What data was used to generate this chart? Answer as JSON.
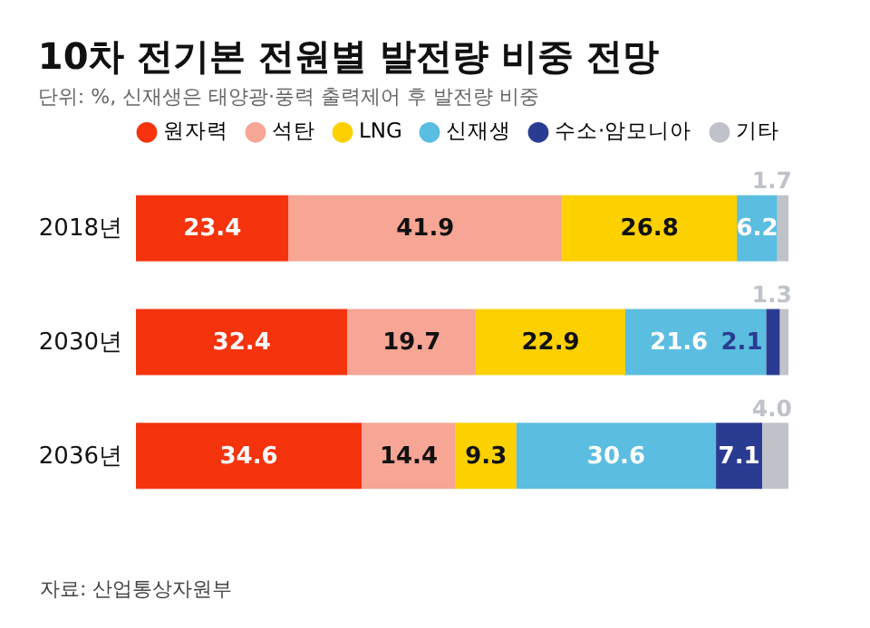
{
  "chart_data": {
    "type": "bar",
    "orientation": "horizontal",
    "stacked": true,
    "legend": "top",
    "title": "10차 전기본 전원별 발전량 비중 전망",
    "subtitle": "단위: %, 신재생은 태양광·풍력 출력제어 후 발전량 비중",
    "annotations": [
      "자료: 산업통상자원부"
    ],
    "categories": [
      "2018년",
      "2030년",
      "2036년"
    ],
    "series": [
      {
        "name": "원자력",
        "color": "#f5330d",
        "values": [
          23.4,
          32.4,
          34.6
        ],
        "value_labels": [
          "23.4",
          "32.4",
          "34.6"
        ]
      },
      {
        "name": "석탄",
        "color": "#f7a594",
        "values": [
          41.9,
          19.7,
          14.4
        ],
        "value_labels": [
          "41.9",
          "19.7",
          "14.4"
        ]
      },
      {
        "name": "LNG",
        "color": "#fdd000",
        "values": [
          26.8,
          22.9,
          9.3
        ],
        "value_labels": [
          "26.8",
          "22.9",
          "9.3"
        ]
      },
      {
        "name": "신재생",
        "color": "#5bbde0",
        "values": [
          6.2,
          21.6,
          30.6
        ],
        "value_labels": [
          "6.2",
          "21.6",
          "30.6"
        ]
      },
      {
        "name": "수소·암모니아",
        "color": "#2a3c92",
        "values": [
          null,
          2.1,
          7.1
        ],
        "value_labels": [
          null,
          "2.1",
          "7.1"
        ]
      },
      {
        "name": "기타",
        "color": "#bfc3c9",
        "values": [
          1.7,
          1.3,
          4.0
        ],
        "value_labels": [
          "1.7",
          "1.3",
          "4.0"
        ]
      }
    ]
  }
}
